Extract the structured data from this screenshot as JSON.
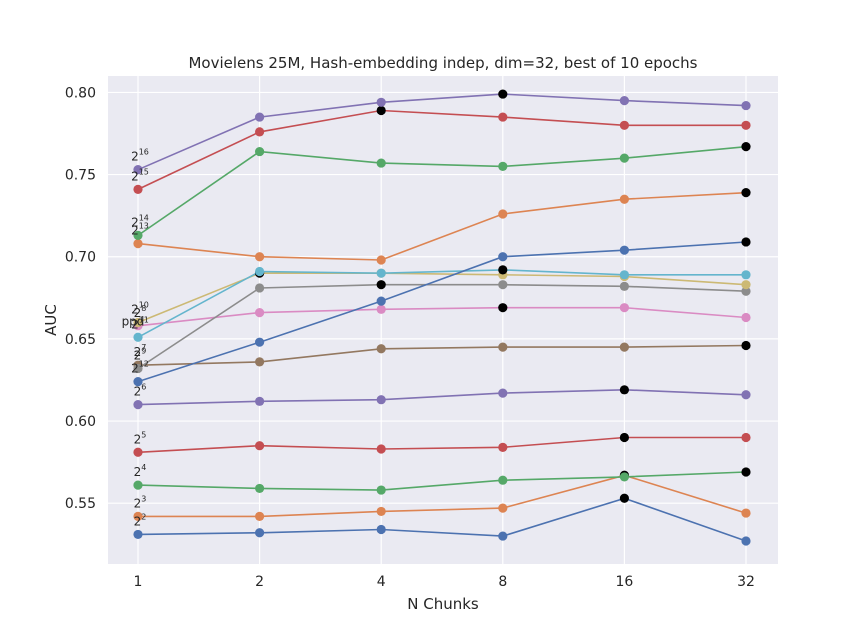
{
  "chart_data": {
    "type": "line",
    "title": "Movielens 25M, Hash-embedding indep, dim=32, best of 10 epochs",
    "xlabel": "N Chunks",
    "ylabel": "AUC",
    "categories": [
      "1",
      "2",
      "4",
      "8",
      "16",
      "32"
    ],
    "ylim": [
      0.513,
      0.81
    ],
    "yticks": [
      "0.55",
      "0.60",
      "0.65",
      "0.70",
      "0.75",
      "0.80"
    ],
    "ytick_values": [
      0.55,
      0.6,
      0.65,
      0.7,
      0.75,
      0.8
    ],
    "grid": true,
    "background": "#eaeaf2",
    "series": [
      {
        "label_base": "2",
        "label_exp": "2",
        "color": "#4c72b0",
        "values": [
          0.531,
          0.532,
          0.534,
          0.53,
          0.553,
          0.527
        ],
        "best_index": 4
      },
      {
        "label_base": "2",
        "label_exp": "3",
        "color": "#dd8452",
        "values": [
          0.542,
          0.542,
          0.545,
          0.547,
          0.567,
          0.544
        ],
        "best_index": 4
      },
      {
        "label_base": "2",
        "label_exp": "4",
        "color": "#55a868",
        "values": [
          0.561,
          0.559,
          0.558,
          0.564,
          0.566,
          0.569
        ],
        "best_index": 5
      },
      {
        "label_base": "2",
        "label_exp": "5",
        "color": "#c44e52",
        "values": [
          0.581,
          0.585,
          0.583,
          0.584,
          0.59,
          0.59
        ],
        "best_index": 4
      },
      {
        "label_base": "2",
        "label_exp": "6",
        "color": "#8172b3",
        "values": [
          0.61,
          0.612,
          0.613,
          0.617,
          0.619,
          0.616
        ],
        "best_index": 4
      },
      {
        "label_base": "2",
        "label_exp": "7",
        "color": "#937860",
        "values": [
          0.634,
          0.636,
          0.644,
          0.645,
          0.645,
          0.646
        ],
        "best_index": 5
      },
      {
        "label_base": "2",
        "label_exp": "8",
        "color": "#da8bc3",
        "values": [
          0.658,
          0.666,
          0.668,
          0.669,
          0.669,
          0.663
        ],
        "best_index": 3
      },
      {
        "label_base": "2",
        "label_exp": "9",
        "color": "#8c8c8c",
        "values": [
          0.632,
          0.681,
          0.683,
          0.683,
          0.682,
          0.679
        ],
        "best_index": 2
      },
      {
        "label_base": "2",
        "label_exp": "10",
        "color": "#ccb974",
        "values": [
          0.66,
          0.69,
          0.69,
          0.689,
          0.688,
          0.683
        ],
        "best_index": 1
      },
      {
        "label_base": "2",
        "label_exp": "11",
        "color": "#64b5cd",
        "values": [
          0.651,
          0.691,
          0.69,
          0.692,
          0.689,
          0.689
        ],
        "best_index": 3
      },
      {
        "label_base": "2",
        "label_exp": "12",
        "color": "#4c72b0",
        "values": [
          0.624,
          0.648,
          0.673,
          0.7,
          0.704,
          0.709
        ],
        "best_index": 5
      },
      {
        "label_base": "2",
        "label_exp": "13",
        "color": "#dd8452",
        "values": [
          0.708,
          0.7,
          0.698,
          0.726,
          0.735,
          0.739
        ],
        "best_index": 5
      },
      {
        "label_base": "2",
        "label_exp": "14",
        "color": "#55a868",
        "values": [
          0.713,
          0.764,
          0.757,
          0.755,
          0.76,
          0.767
        ],
        "best_index": 5
      },
      {
        "label_base": "2",
        "label_exp": "15",
        "color": "#c44e52",
        "values": [
          0.741,
          0.776,
          0.789,
          0.785,
          0.78,
          0.78
        ],
        "best_index": 2
      },
      {
        "label_base": "2",
        "label_exp": "16",
        "color": "#8172b3",
        "values": [
          0.753,
          0.785,
          0.794,
          0.799,
          0.795,
          0.792
        ],
        "best_index": 3
      }
    ],
    "annotations": [
      {
        "text": "ppd",
        "exp": "",
        "x_index": 0,
        "y": 0.66
      }
    ]
  }
}
